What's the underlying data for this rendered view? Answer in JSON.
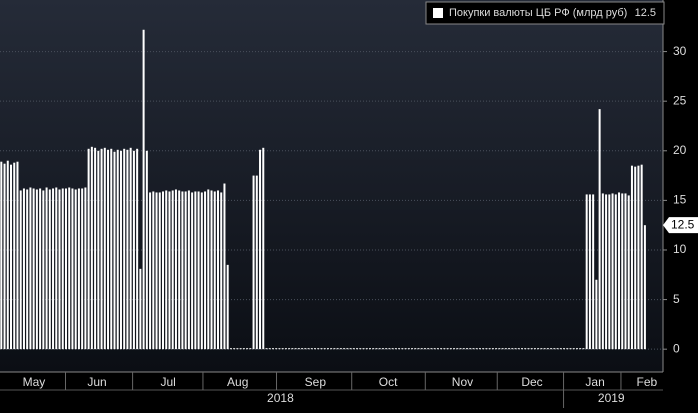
{
  "chart_data": {
    "type": "bar",
    "series": [
      {
        "name": "Покупки валюты ЦБ РФ (млрд руб)",
        "color": "#ffffff",
        "values": [
          18.9,
          18.7,
          19.0,
          18.6,
          18.8,
          18.9,
          16.0,
          16.2,
          16.1,
          16.3,
          16.2,
          16.1,
          16.2,
          16.0,
          16.3,
          16.1,
          16.2,
          16.3,
          16.1,
          16.2,
          16.2,
          16.3,
          16.2,
          16.1,
          16.2,
          16.2,
          16.3,
          20.2,
          20.4,
          20.3,
          20.0,
          20.2,
          20.3,
          20.1,
          20.2,
          19.9,
          20.1,
          20.0,
          20.2,
          20.1,
          20.3,
          20.0,
          20.2,
          8.1,
          32.2,
          20.0,
          15.8,
          15.9,
          15.8,
          15.8,
          15.9,
          16.0,
          15.9,
          16.0,
          16.1,
          16.0,
          15.9,
          15.9,
          16.0,
          15.8,
          15.9,
          15.9,
          15.8,
          15.9,
          16.1,
          16.0,
          15.9,
          16.0,
          15.8,
          16.7,
          8.5,
          0,
          0,
          0,
          0,
          0,
          0,
          0,
          17.5,
          17.5,
          20.1,
          20.3,
          0,
          0,
          0,
          0,
          0,
          0,
          0,
          0,
          0,
          0,
          0,
          0,
          0,
          0,
          0,
          0,
          0,
          0,
          0,
          0,
          0,
          0,
          0,
          0,
          0,
          0,
          0,
          0,
          0,
          0,
          0,
          0,
          0,
          0,
          0,
          0,
          0,
          0,
          0,
          0,
          0,
          0,
          0,
          0,
          0,
          0,
          0,
          0,
          0,
          0,
          0,
          0,
          0,
          0,
          0,
          0,
          0,
          0,
          0,
          0,
          0,
          0,
          0,
          0,
          0,
          0,
          0,
          0,
          0,
          0,
          0,
          0,
          0,
          0,
          0,
          0,
          0,
          0,
          0,
          0,
          0,
          0,
          0,
          0,
          0,
          0,
          0,
          0,
          0,
          0,
          0,
          0,
          0,
          0,
          0,
          0,
          0,
          0,
          0,
          15.6,
          15.6,
          15.6,
          7.0,
          24.2,
          15.7,
          15.6,
          15.6,
          15.7,
          15.6,
          15.8,
          15.7,
          15.7,
          15.5,
          18.5,
          18.4,
          18.5,
          18.6,
          12.5
        ]
      }
    ],
    "xlim": [
      0,
      205
    ],
    "xticks": [
      {
        "value": 10.5,
        "label": "May"
      },
      {
        "value": 30,
        "label": "Jun"
      },
      {
        "value": 52,
        "label": "Jul"
      },
      {
        "value": 73.5,
        "label": "Aug"
      },
      {
        "value": 97.5,
        "label": "Sep"
      },
      {
        "value": 120,
        "label": "Oct"
      },
      {
        "value": 143,
        "label": "Nov"
      },
      {
        "value": 164.5,
        "label": "Dec"
      },
      {
        "value": 184,
        "label": "Jan"
      },
      {
        "value": 200,
        "label": "Feb"
      }
    ],
    "year_ticks": [
      {
        "value": 86.7,
        "label": "2018"
      },
      {
        "value": 189,
        "label": "2019"
      }
    ],
    "ylim": [
      -2.3,
      35.2
    ],
    "yticks": [
      0,
      5,
      10,
      15,
      20,
      25,
      30
    ],
    "grid": true
  }
}
